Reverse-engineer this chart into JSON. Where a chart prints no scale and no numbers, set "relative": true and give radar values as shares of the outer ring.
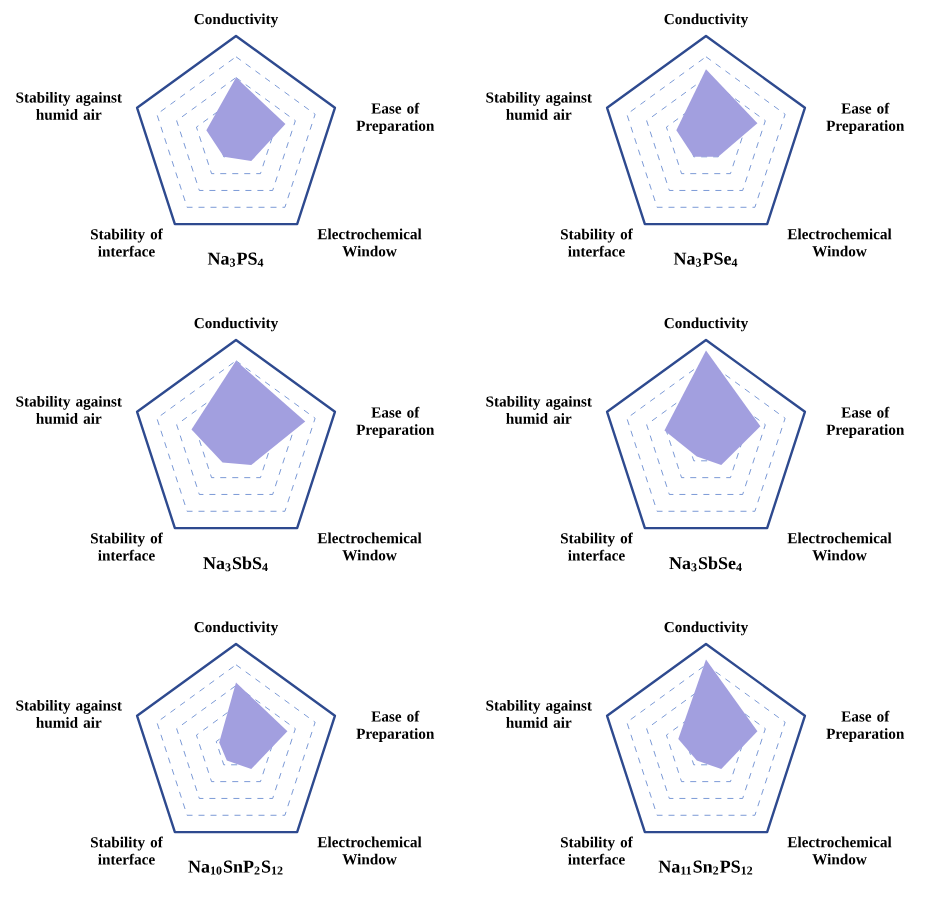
{
  "chart_data": [
    {
      "type": "radar",
      "title": "Na$_{3}$PS$_{4}$",
      "relative": true,
      "grid": true,
      "categories": [
        "Conductivity",
        "Ease of Preparation",
        "Electrochemical Window",
        "Stability of interface",
        "Stability against humid air"
      ],
      "series": [
        {
          "color": "#a29fdf",
          "values": [
            0.6,
            0.5,
            0.25,
            0.2,
            0.3
          ]
        }
      ]
    },
    {
      "type": "radar",
      "title": "Na$_{3}$PSe$_{4}$",
      "relative": true,
      "grid": true,
      "categories": [
        "Conductivity",
        "Ease of Preparation",
        "Electrochemical Window",
        "Stability of interface",
        "Stability against humid air"
      ],
      "series": [
        {
          "color": "#a29fdf",
          "values": [
            0.68,
            0.52,
            0.2,
            0.2,
            0.3
          ]
        }
      ]
    },
    {
      "type": "radar",
      "title": "Na$_{3}$SbS$_{4}$",
      "relative": true,
      "grid": true,
      "categories": [
        "Conductivity",
        "Ease of Preparation",
        "Electrochemical Window",
        "Stability of interface",
        "Stability against humid air"
      ],
      "series": [
        {
          "color": "#a29fdf",
          "values": [
            0.8,
            0.7,
            0.25,
            0.22,
            0.45
          ]
        }
      ]
    },
    {
      "type": "radar",
      "title": "Na$_{3}$SbSe$_{4}$",
      "relative": true,
      "grid": true,
      "categories": [
        "Conductivity",
        "Ease of Preparation",
        "Electrochemical Window",
        "Stability of interface",
        "Stability against humid air"
      ],
      "series": [
        {
          "color": "#a29fdf",
          "values": [
            0.9,
            0.55,
            0.25,
            0.15,
            0.42
          ]
        }
      ]
    },
    {
      "type": "radar",
      "title": "Na$_{10}$SnP$_{2}$S$_{12}$",
      "relative": true,
      "grid": true,
      "categories": [
        "Conductivity",
        "Ease of Preparation",
        "Electrochemical Window",
        "Stability of interface",
        "Stability against humid air"
      ],
      "series": [
        {
          "color": "#a29fdf",
          "values": [
            0.63,
            0.52,
            0.25,
            0.15,
            0.17
          ]
        }
      ]
    },
    {
      "type": "radar",
      "title": "Na$_{11}$Sn$_{2}$PS$_{12}$",
      "relative": true,
      "grid": true,
      "categories": [
        "Conductivity",
        "Ease of Preparation",
        "Electrochemical Window",
        "Stability of interface",
        "Stability against humid air"
      ],
      "series": [
        {
          "color": "#a29fdf",
          "values": [
            0.85,
            0.52,
            0.25,
            0.15,
            0.28
          ]
        }
      ]
    }
  ]
}
